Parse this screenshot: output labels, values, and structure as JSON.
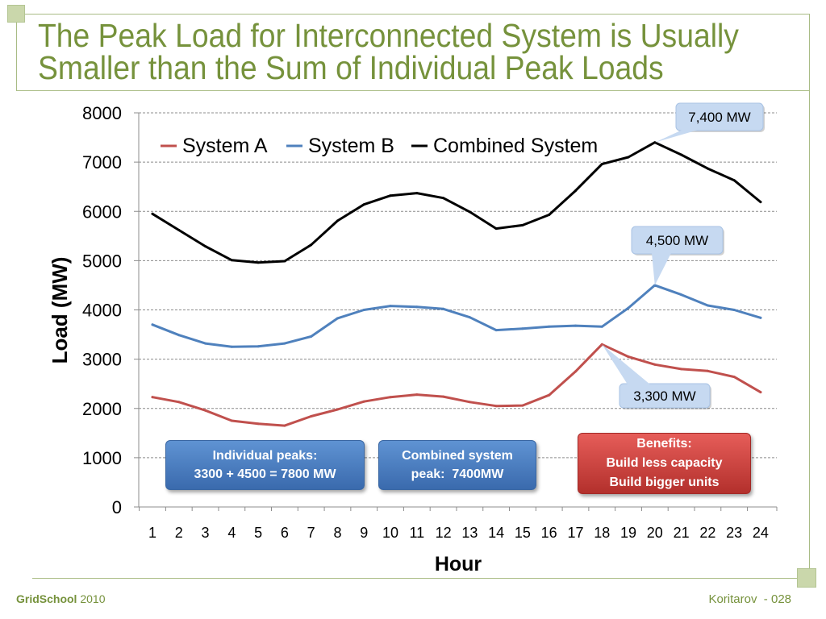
{
  "slide": {
    "title_lines": [
      "The Peak Load for Interconnected System is Usually",
      "Smaller than the Sum of Individual Peak Loads"
    ],
    "footer_brand": "GridSchool",
    "footer_year": "2010",
    "footer_right": "Koritarov  - 028"
  },
  "colors": {
    "title": "#76923C",
    "frame_lines": "#A9BC85",
    "callout_fill": "#C6D9F1"
  },
  "chart_data": {
    "type": "line",
    "categories": [
      1,
      2,
      3,
      4,
      5,
      6,
      7,
      8,
      9,
      10,
      11,
      12,
      13,
      14,
      15,
      16,
      17,
      18,
      19,
      20,
      21,
      22,
      23,
      24
    ],
    "series": [
      {
        "name": "System A",
        "color": "#C0504D",
        "values": [
          2230,
          2130,
          1960,
          1750,
          1690,
          1650,
          1840,
          1980,
          2140,
          2230,
          2280,
          2240,
          2130,
          2050,
          2060,
          2270,
          2750,
          3300,
          3050,
          2890,
          2800,
          2760,
          2640,
          2330
        ]
      },
      {
        "name": "System B",
        "color": "#4F81BD",
        "values": [
          3700,
          3490,
          3320,
          3250,
          3260,
          3320,
          3460,
          3830,
          4000,
          4080,
          4060,
          4020,
          3850,
          3590,
          3620,
          3660,
          3680,
          3660,
          4040,
          4500,
          4310,
          4090,
          4000,
          3840
        ]
      },
      {
        "name": "Combined System",
        "color": "#000000",
        "values": [
          5950,
          5620,
          5290,
          5010,
          4960,
          4990,
          5320,
          5810,
          6140,
          6320,
          6370,
          6270,
          5990,
          5650,
          5720,
          5930,
          6420,
          6960,
          7100,
          7400,
          7150,
          6870,
          6630,
          6190
        ]
      }
    ],
    "xlabel": "Hour",
    "ylabel": "Load (MW)",
    "ylim": [
      0,
      8000
    ],
    "yticks": [
      0,
      1000,
      2000,
      3000,
      4000,
      5000,
      6000,
      7000,
      8000
    ],
    "grid": true,
    "legend": "top-left",
    "annotations": [
      {
        "text": "7,400 MW",
        "series_index": 2,
        "hour": 20,
        "value": 7400
      },
      {
        "text": "4,500 MW",
        "series_index": 1,
        "hour": 20,
        "value": 4500
      },
      {
        "text": "3,300 MW",
        "series_index": 0,
        "hour": 18,
        "value": 3300
      }
    ]
  },
  "callout_boxes": [
    {
      "lines": [
        "Individual peaks:",
        "3300 + 4500 = 7800 MW"
      ],
      "color": "#4F81BD"
    },
    {
      "lines": [
        "Combined system",
        "peak:  7400MW"
      ],
      "color": "#4F81BD"
    },
    {
      "lines": [
        "Benefits:",
        "Build less capacity",
        "Build bigger units"
      ],
      "color": "#C0504D"
    }
  ]
}
